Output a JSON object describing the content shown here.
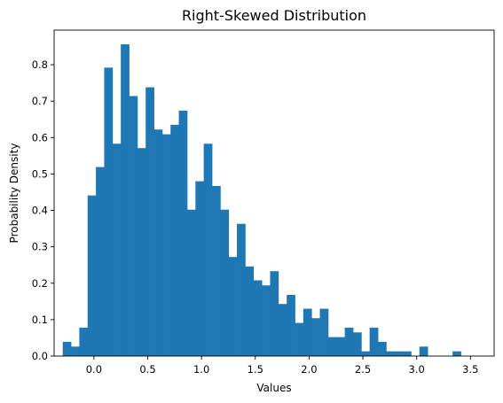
{
  "chart_data": {
    "type": "bar",
    "title": "Right-Skewed Distribution",
    "xlabel": "Values",
    "ylabel": "Probability Density",
    "xlim": [
      -0.37,
      3.72
    ],
    "ylim": [
      0,
      0.895
    ],
    "xticks": [
      0.0,
      0.5,
      1.0,
      1.5,
      2.0,
      2.5,
      3.0,
      3.5
    ],
    "xtick_labels": [
      "0.0",
      "0.5",
      "1.0",
      "1.5",
      "2.0",
      "2.5",
      "3.0",
      "3.5"
    ],
    "yticks": [
      0.0,
      0.1,
      0.2,
      0.3,
      0.4,
      0.5,
      0.6,
      0.7,
      0.8
    ],
    "ytick_labels": [
      "0.0",
      "0.1",
      "0.2",
      "0.3",
      "0.4",
      "0.5",
      "0.6",
      "0.7",
      "0.8"
    ],
    "grid": false,
    "color": "#1f77b4",
    "bin_start": -0.29,
    "bin_width": 0.0771,
    "values": [
      0.039,
      0.026,
      0.078,
      0.441,
      0.519,
      0.792,
      0.583,
      0.856,
      0.714,
      0.571,
      0.738,
      0.622,
      0.609,
      0.635,
      0.674,
      0.402,
      0.48,
      0.583,
      0.467,
      0.402,
      0.272,
      0.363,
      0.246,
      0.208,
      0.194,
      0.233,
      0.143,
      0.168,
      0.091,
      0.13,
      0.104,
      0.13,
      0.052,
      0.052,
      0.078,
      0.065,
      0.013,
      0.078,
      0.039,
      0.013,
      0.013,
      0.013,
      0.0,
      0.026,
      0.0,
      0.0,
      0.0,
      0.013
    ]
  }
}
